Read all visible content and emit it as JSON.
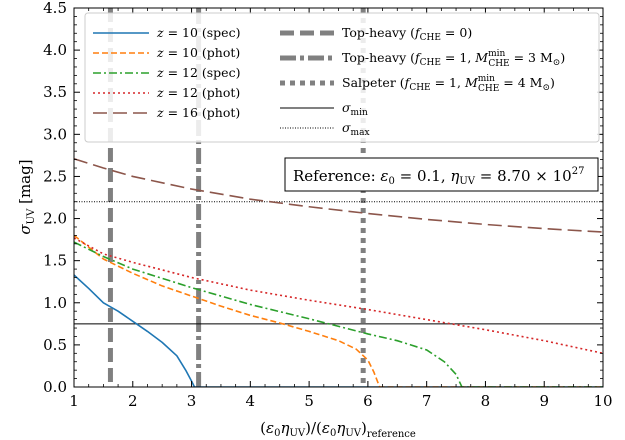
{
  "chart_data": {
    "type": "line",
    "title": "",
    "xlabel": "(ε₀η_UV)/(ε₀η_UV)_reference",
    "ylabel": "σ_UV [mag]",
    "xlim": [
      1,
      10
    ],
    "ylim": [
      0,
      4.5
    ],
    "xticks": [
      1,
      2,
      3,
      4,
      5,
      6,
      7,
      8,
      9,
      10
    ],
    "yticks": [
      0.0,
      0.5,
      1.0,
      1.5,
      2.0,
      2.5,
      3.0,
      3.5,
      4.0,
      4.5
    ],
    "grid": false,
    "legend_placement": "top-left",
    "annotation": "Reference: ε₀ = 0.1, η_UV = 8.70×10²⁷",
    "colors": {
      "spec10": "#1f77b4",
      "phot10": "#ff7f0e",
      "spec12": "#2ca02c",
      "phot12": "#d62728",
      "phot16": "#8c564b",
      "vline": "#808080",
      "hline": "#000000"
    },
    "series": [
      {
        "name": "z = 10 (spec)",
        "style": "solid",
        "color": "#1f77b4",
        "x": [
          1.0,
          1.25,
          1.5,
          1.75,
          2.0,
          2.25,
          2.5,
          2.75,
          2.9,
          3.0,
          3.05,
          10.0
        ],
        "y": [
          1.33,
          1.17,
          1.0,
          0.9,
          0.78,
          0.66,
          0.53,
          0.37,
          0.2,
          0.07,
          0.0,
          0.0
        ]
      },
      {
        "name": "z = 10 (phot)",
        "style": "dashed",
        "color": "#ff7f0e",
        "x": [
          1.0,
          1.5,
          2.0,
          2.5,
          3.0,
          3.5,
          4.0,
          4.5,
          5.0,
          5.5,
          5.8,
          6.0,
          6.1,
          6.2,
          10.0
        ],
        "y": [
          1.8,
          1.52,
          1.35,
          1.2,
          1.08,
          0.96,
          0.85,
          0.76,
          0.66,
          0.55,
          0.45,
          0.32,
          0.18,
          0.0,
          0.0
        ]
      },
      {
        "name": "z = 12 (spec)",
        "style": "dashdot",
        "color": "#2ca02c",
        "x": [
          1.0,
          1.5,
          2.0,
          3.0,
          4.0,
          5.0,
          6.0,
          6.5,
          7.0,
          7.3,
          7.5,
          7.6,
          10.0
        ],
        "y": [
          1.72,
          1.55,
          1.4,
          1.18,
          0.98,
          0.81,
          0.63,
          0.55,
          0.44,
          0.3,
          0.15,
          0.0,
          0.0
        ]
      },
      {
        "name": "z = 12 (phot)",
        "style": "dotted",
        "color": "#d62728",
        "x": [
          1.0,
          1.5,
          2.0,
          3.0,
          4.0,
          5.0,
          6.0,
          7.0,
          8.0,
          9.0,
          10.0
        ],
        "y": [
          1.77,
          1.58,
          1.48,
          1.3,
          1.15,
          1.03,
          0.92,
          0.8,
          0.68,
          0.55,
          0.4
        ]
      },
      {
        "name": "z = 16 (phot)",
        "style": "longdash",
        "color": "#8c564b",
        "x": [
          1.0,
          1.5,
          2.0,
          3.0,
          4.0,
          5.0,
          6.0,
          7.0,
          8.0,
          9.0,
          10.0
        ],
        "y": [
          2.71,
          2.6,
          2.5,
          2.35,
          2.23,
          2.14,
          2.06,
          1.99,
          1.93,
          1.88,
          1.84
        ]
      }
    ],
    "vlines": [
      {
        "name": "Top-heavy (f_CHE = 0)",
        "x": 1.62,
        "style": "dashed"
      },
      {
        "name": "Top-heavy (f_CHE = 1, M_CHE^min = 3 M⊙)",
        "x": 3.12,
        "style": "dashdot"
      },
      {
        "name": "Salpeter (f_CHE = 1, M_CHE^min = 4 M⊙)",
        "x": 5.92,
        "style": "dotted"
      }
    ],
    "hlines": [
      {
        "name": "σ_min",
        "y": 0.75,
        "style": "solid"
      },
      {
        "name": "σ_max",
        "y": 2.2,
        "style": "dotted"
      }
    ]
  }
}
